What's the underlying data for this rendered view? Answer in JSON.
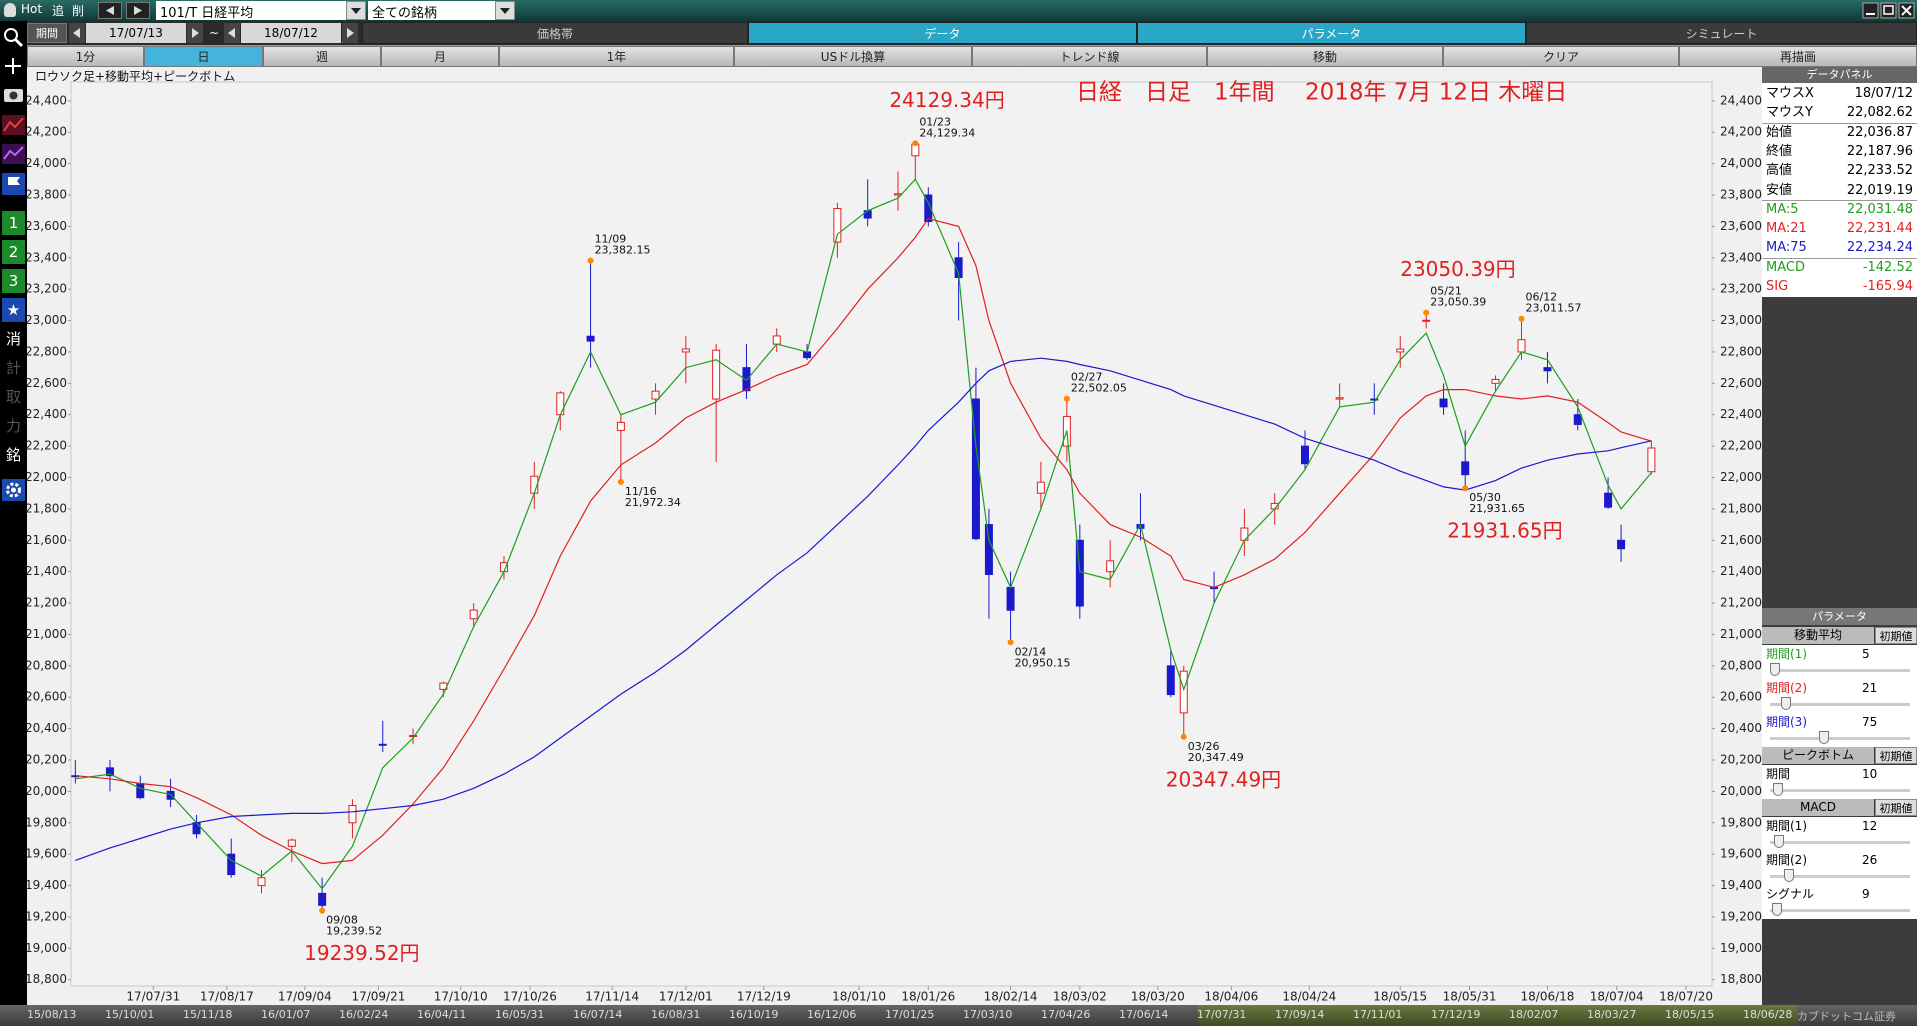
{
  "toolbar": {
    "items": [
      "Hot",
      "追",
      "削"
    ],
    "symbol": "101/T 日経平均",
    "universe": "全ての銘柄"
  },
  "period_bar": {
    "label": "期間",
    "from": "17/07/13",
    "sep": "~",
    "to": "18/07/12",
    "tabs": [
      "価格帯",
      "データ",
      "パラメータ",
      "シミュレート"
    ]
  },
  "menu_bar": {
    "buttons": [
      "1分",
      "日",
      "週",
      "月",
      "1年",
      "USドル換算",
      "トレンド線",
      "移動",
      "クリア",
      "再描画"
    ]
  },
  "sidebar": {
    "labels": [
      "1",
      "2",
      "3",
      "★",
      "消",
      "計",
      "取",
      "力",
      "銘"
    ]
  },
  "chart_data": {
    "type": "candlestick",
    "subtitle": "ロウソク足+移動平均+ピークボトム",
    "title": "日経　日足　1年間　 2018年 7月 12日 木曜日",
    "xlim": [
      "17/07/12",
      "18/07/26"
    ],
    "ylim": [
      18760,
      24520
    ],
    "xticks": [
      "17/07/31",
      "17/08/17",
      "17/09/04",
      "17/09/21",
      "17/10/10",
      "17/10/26",
      "17/11/14",
      "17/12/01",
      "17/12/19",
      "18/01/10",
      "18/01/26",
      "18/02/14",
      "18/03/02",
      "18/03/20",
      "18/04/06",
      "18/04/24",
      "18/05/15",
      "18/05/31",
      "18/06/18",
      "18/07/04",
      "18/07/20"
    ],
    "yticks": [
      {
        "value": 18800,
        "label": "18,800"
      },
      {
        "value": 19000,
        "label": "19,000"
      },
      {
        "value": 19200,
        "label": "19,200"
      },
      {
        "value": 19400,
        "label": "19,400"
      },
      {
        "value": 19600,
        "label": "19,600"
      },
      {
        "value": 19800,
        "label": "19,800"
      },
      {
        "value": 20000,
        "label": "20,000"
      },
      {
        "value": 20200,
        "label": "20,200"
      },
      {
        "value": 20400,
        "label": "20,400"
      },
      {
        "value": 20600,
        "label": "20,600"
      },
      {
        "value": 20800,
        "label": "20,800"
      },
      {
        "value": 21000,
        "label": "21,000"
      },
      {
        "value": 21200,
        "label": "21,200"
      },
      {
        "value": 21400,
        "label": "21,400"
      },
      {
        "value": 21600,
        "label": "21,600"
      },
      {
        "value": 21800,
        "label": "21,800"
      },
      {
        "value": 22000,
        "label": "22,000"
      },
      {
        "value": 22200,
        "label": "22,200"
      },
      {
        "value": 22400,
        "label": "22,400"
      },
      {
        "value": 22600,
        "label": "22,600"
      },
      {
        "value": 22800,
        "label": "22,800"
      },
      {
        "value": 23000,
        "label": "23,000"
      },
      {
        "value": 23200,
        "label": "23,200"
      },
      {
        "value": 23400,
        "label": "23,400"
      },
      {
        "value": 23600,
        "label": "23,600"
      },
      {
        "value": 23800,
        "label": "23,800"
      },
      {
        "value": 24000,
        "label": "24,000"
      },
      {
        "value": 24200,
        "label": "24,200"
      },
      {
        "value": 24400,
        "label": "24,400"
      }
    ],
    "up_color": "#e02020",
    "down_color": "#1a1acc",
    "candles": {
      "x": [
        "17/07/13",
        "17/07/21",
        "17/07/28",
        "17/08/04",
        "17/08/10",
        "17/08/18",
        "17/08/25",
        "17/09/01",
        "17/09/08",
        "17/09/15",
        "17/09/22",
        "17/09/29",
        "17/10/06",
        "17/10/13",
        "17/10/20",
        "17/10/27",
        "17/11/02",
        "17/11/09",
        "17/11/16",
        "17/11/24",
        "17/12/01",
        "17/12/08",
        "17/12/15",
        "17/12/22",
        "17/12/29",
        "18/01/05",
        "18/01/12",
        "18/01/19",
        "18/01/23",
        "18/01/26",
        "18/02/02",
        "18/02/06",
        "18/02/09",
        "18/02/14",
        "18/02/21",
        "18/02/27",
        "18/03/02",
        "18/03/09",
        "18/03/16",
        "18/03/23",
        "18/03/26",
        "18/04/02",
        "18/04/09",
        "18/04/16",
        "18/04/23",
        "18/05/01",
        "18/05/09",
        "18/05/15",
        "18/05/21",
        "18/05/25",
        "18/05/30",
        "18/06/06",
        "18/06/12",
        "18/06/18",
        "18/06/25",
        "18/07/02",
        "18/07/05",
        "18/07/12"
      ],
      "open": [
        20100,
        20150,
        20050,
        20000,
        19800,
        19600,
        19400,
        19650,
        19350,
        19800,
        20300,
        20350,
        20650,
        21100,
        21400,
        21900,
        22400,
        22900,
        22300,
        22500,
        22800,
        22500,
        22700,
        22850,
        22800,
        23500,
        23700,
        23800,
        24050,
        23800,
        23400,
        22500,
        21700,
        21300,
        21900,
        22200,
        21600,
        21400,
        21700,
        20800,
        20500,
        21300,
        21600,
        21800,
        22200,
        22500,
        22500,
        22800,
        23000,
        22500,
        22100,
        22600,
        22800,
        22700,
        22400,
        21900,
        21600,
        22036.87
      ],
      "high": [
        20200,
        20200,
        20100,
        20080,
        19850,
        19700,
        19500,
        19700,
        19450,
        19950,
        20450,
        20400,
        20700,
        21200,
        21500,
        22100,
        22550,
        23382.15,
        22400,
        22600,
        22900,
        22850,
        22850,
        22950,
        22850,
        23750,
        23900,
        23950,
        24129.34,
        23850,
        23500,
        22700,
        21800,
        21400,
        22100,
        22502.05,
        21700,
        21600,
        21900,
        20900,
        20800,
        21400,
        21800,
        21900,
        22300,
        22600,
        22600,
        22900,
        23050.39,
        22600,
        22300,
        22650,
        23011.57,
        22800,
        22500,
        22000,
        21700,
        22233.52
      ],
      "low": [
        20050,
        20000,
        19950,
        19900,
        19700,
        19450,
        19350,
        19550,
        19239.52,
        19700,
        20250,
        20300,
        20600,
        21050,
        21350,
        21800,
        22300,
        22700,
        21972.34,
        22400,
        22600,
        22100,
        22500,
        22800,
        22750,
        23400,
        23600,
        23700,
        23900,
        23600,
        23000,
        21600,
        21100,
        20950.15,
        21800,
        22100,
        21100,
        21300,
        21600,
        20600,
        20347.49,
        21200,
        21500,
        21700,
        22050,
        22450,
        22400,
        22700,
        22950,
        22400,
        21931.65,
        22550,
        22750,
        22600,
        22300,
        21800,
        21462,
        22019.19
      ],
      "close": [
        20099,
        20100,
        19960,
        19950,
        19730,
        19470,
        19450,
        19690,
        19274,
        19910,
        20296,
        20356,
        20690,
        21155,
        21457,
        22008,
        22539,
        22869,
        22351,
        22550,
        22819,
        22811,
        22553,
        22902,
        22764,
        23714,
        23653,
        23808,
        24124,
        23631,
        23274,
        21610,
        21382,
        21154,
        21970,
        22389,
        21181,
        21469,
        21676,
        20617,
        20766,
        21292,
        21678,
        21835,
        22088,
        22508,
        22497,
        22818,
        23002,
        22450,
        22018,
        22625,
        22878,
        22680,
        22338,
        21811,
        21546,
        22187.96
      ]
    },
    "lines": [
      {
        "color": "#1f9e1f",
        "values": [
          20080,
          20110,
          20020,
          19980,
          19800,
          19560,
          19460,
          19620,
          19380,
          19650,
          20150,
          20340,
          20620,
          21050,
          21400,
          21900,
          22400,
          22800,
          22400,
          22480,
          22700,
          22750,
          22620,
          22850,
          22800,
          23550,
          23700,
          23780,
          23900,
          23750,
          23300,
          22200,
          21600,
          21300,
          21800,
          22300,
          21400,
          21350,
          21700,
          20900,
          20650,
          21200,
          21600,
          21800,
          22050,
          22450,
          22480,
          22750,
          22920,
          22650,
          22200,
          22550,
          22800,
          22750,
          22450,
          21950,
          21800,
          22031
        ]
      },
      {
        "color": "#e02020",
        "values": [
          20100,
          20080,
          20050,
          20030,
          19960,
          19850,
          19720,
          19620,
          19540,
          19560,
          19720,
          19920,
          20150,
          20450,
          20780,
          21120,
          21500,
          21850,
          22080,
          22220,
          22380,
          22480,
          22560,
          22650,
          22720,
          22950,
          23200,
          23400,
          23530,
          23650,
          23600,
          23350,
          23000,
          22600,
          22250,
          22050,
          21900,
          21700,
          21620,
          21500,
          21350,
          21300,
          21380,
          21480,
          21650,
          21900,
          22150,
          22380,
          22520,
          22560,
          22560,
          22520,
          22500,
          22520,
          22480,
          22350,
          22290,
          22231
        ]
      },
      {
        "color": "#1a1acc",
        "values": [
          19560,
          19640,
          19700,
          19760,
          19800,
          19840,
          19850,
          19860,
          19860,
          19870,
          19890,
          19910,
          19950,
          20020,
          20110,
          20220,
          20340,
          20480,
          20620,
          20760,
          20900,
          21060,
          21220,
          21380,
          21520,
          21700,
          21880,
          22080,
          22200,
          22300,
          22480,
          22600,
          22680,
          22740,
          22760,
          22740,
          22720,
          22680,
          22620,
          22560,
          22520,
          22460,
          22400,
          22340,
          22250,
          22180,
          22110,
          22040,
          21980,
          21940,
          21920,
          21980,
          22060,
          22110,
          22150,
          22170,
          22190,
          22234
        ]
      }
    ],
    "annotations": [
      {
        "x": "17/11/09",
        "value": 23382.15,
        "date": "11/09",
        "label": "23,382.15",
        "position": "above"
      },
      {
        "x": "17/11/16",
        "value": 21972.34,
        "date": "11/16",
        "label": "21,972.34",
        "position": "below"
      },
      {
        "x": "18/01/23",
        "value": 24129.34,
        "date": "01/23",
        "label": "24,129.34",
        "position": "above",
        "big": "24129.34円"
      },
      {
        "x": "18/02/14",
        "value": 20950.15,
        "date": "02/14",
        "label": "20,950.15",
        "position": "below"
      },
      {
        "x": "18/02/27",
        "value": 22502.05,
        "date": "02/27",
        "label": "22,502.05",
        "position": "above"
      },
      {
        "x": "18/03/26",
        "value": 20347.49,
        "date": "03/26",
        "label": "20,347.49",
        "position": "below",
        "big": "20347.49円"
      },
      {
        "x": "18/05/21",
        "value": 23050.39,
        "date": "05/21",
        "label": "23,050.39",
        "position": "above",
        "big": "23050.39円"
      },
      {
        "x": "18/05/30",
        "value": 21931.65,
        "date": "05/30",
        "label": "21,931.65",
        "position": "below",
        "big": "21931.65円"
      },
      {
        "x": "18/06/12",
        "value": 23011.57,
        "date": "06/12",
        "label": "23,011.57",
        "position": "above"
      },
      {
        "x": "17/09/08",
        "value": 19239.52,
        "date": "09/08",
        "label": "19,239.52",
        "position": "below",
        "big": "19239.52円"
      }
    ]
  },
  "data_panel": {
    "title": "データパネル",
    "rows": [
      {
        "label": "マウスX",
        "value": "18/07/12",
        "color": "#000"
      },
      {
        "label": "マウスY",
        "value": "22,082.62",
        "color": "#000"
      },
      {
        "label": "始値",
        "value": "22,036.87",
        "color": "#000"
      },
      {
        "label": "終値",
        "value": "22,187.96",
        "color": "#000"
      },
      {
        "label": "高値",
        "value": "22,233.52",
        "color": "#000"
      },
      {
        "label": "安値",
        "value": "22,019.19",
        "color": "#000"
      },
      {
        "label": "MA:5",
        "value": "22,031.48",
        "color": "#1f9e1f"
      },
      {
        "label": "MA:21",
        "value": "22,231.44",
        "color": "#e02020"
      },
      {
        "label": "MA:75",
        "value": "22,234.24",
        "color": "#1a1acc"
      },
      {
        "label": "MACD",
        "value": "-142.52",
        "color": "#1f9e1f"
      },
      {
        "label": "SIG",
        "value": "-165.94",
        "color": "#e02020"
      }
    ]
  },
  "parameter_panel": {
    "title": "パラメータ",
    "sections": [
      {
        "title": "移動平均",
        "reset": "初期値",
        "items": [
          {
            "label": "期間(1)",
            "value": 5,
            "color": "#1f9e1f"
          },
          {
            "label": "期間(2)",
            "value": 21,
            "color": "#e02020"
          },
          {
            "label": "期間(3)",
            "value": 75,
            "color": "#1a1acc"
          }
        ]
      },
      {
        "title": "ピークボトム",
        "reset": "初期値",
        "items": [
          {
            "label": "期間",
            "value": 10,
            "color": "#000"
          }
        ]
      },
      {
        "title": "MACD",
        "reset": "初期値",
        "items": [
          {
            "label": "期間(1)",
            "value": 12,
            "color": "#000"
          },
          {
            "label": "期間(2)",
            "value": 26,
            "color": "#000"
          },
          {
            "label": "シグナル",
            "value": 9,
            "color": "#000"
          }
        ]
      }
    ]
  },
  "overview_bar": {
    "labels": [
      "15/08/13",
      "15/10/01",
      "15/11/18",
      "16/01/07",
      "16/02/24",
      "16/04/11",
      "16/05/31",
      "16/07/14",
      "16/08/31",
      "16/10/19",
      "16/12/06",
      "17/01/25",
      "17/03/10",
      "17/04/26",
      "17/06/14",
      "17/07/31",
      "17/09/14",
      "17/11/01",
      "17/12/19",
      "18/02/07",
      "18/03/27",
      "18/05/15",
      "18/06/28"
    ],
    "company": "カブドットコム証券"
  }
}
